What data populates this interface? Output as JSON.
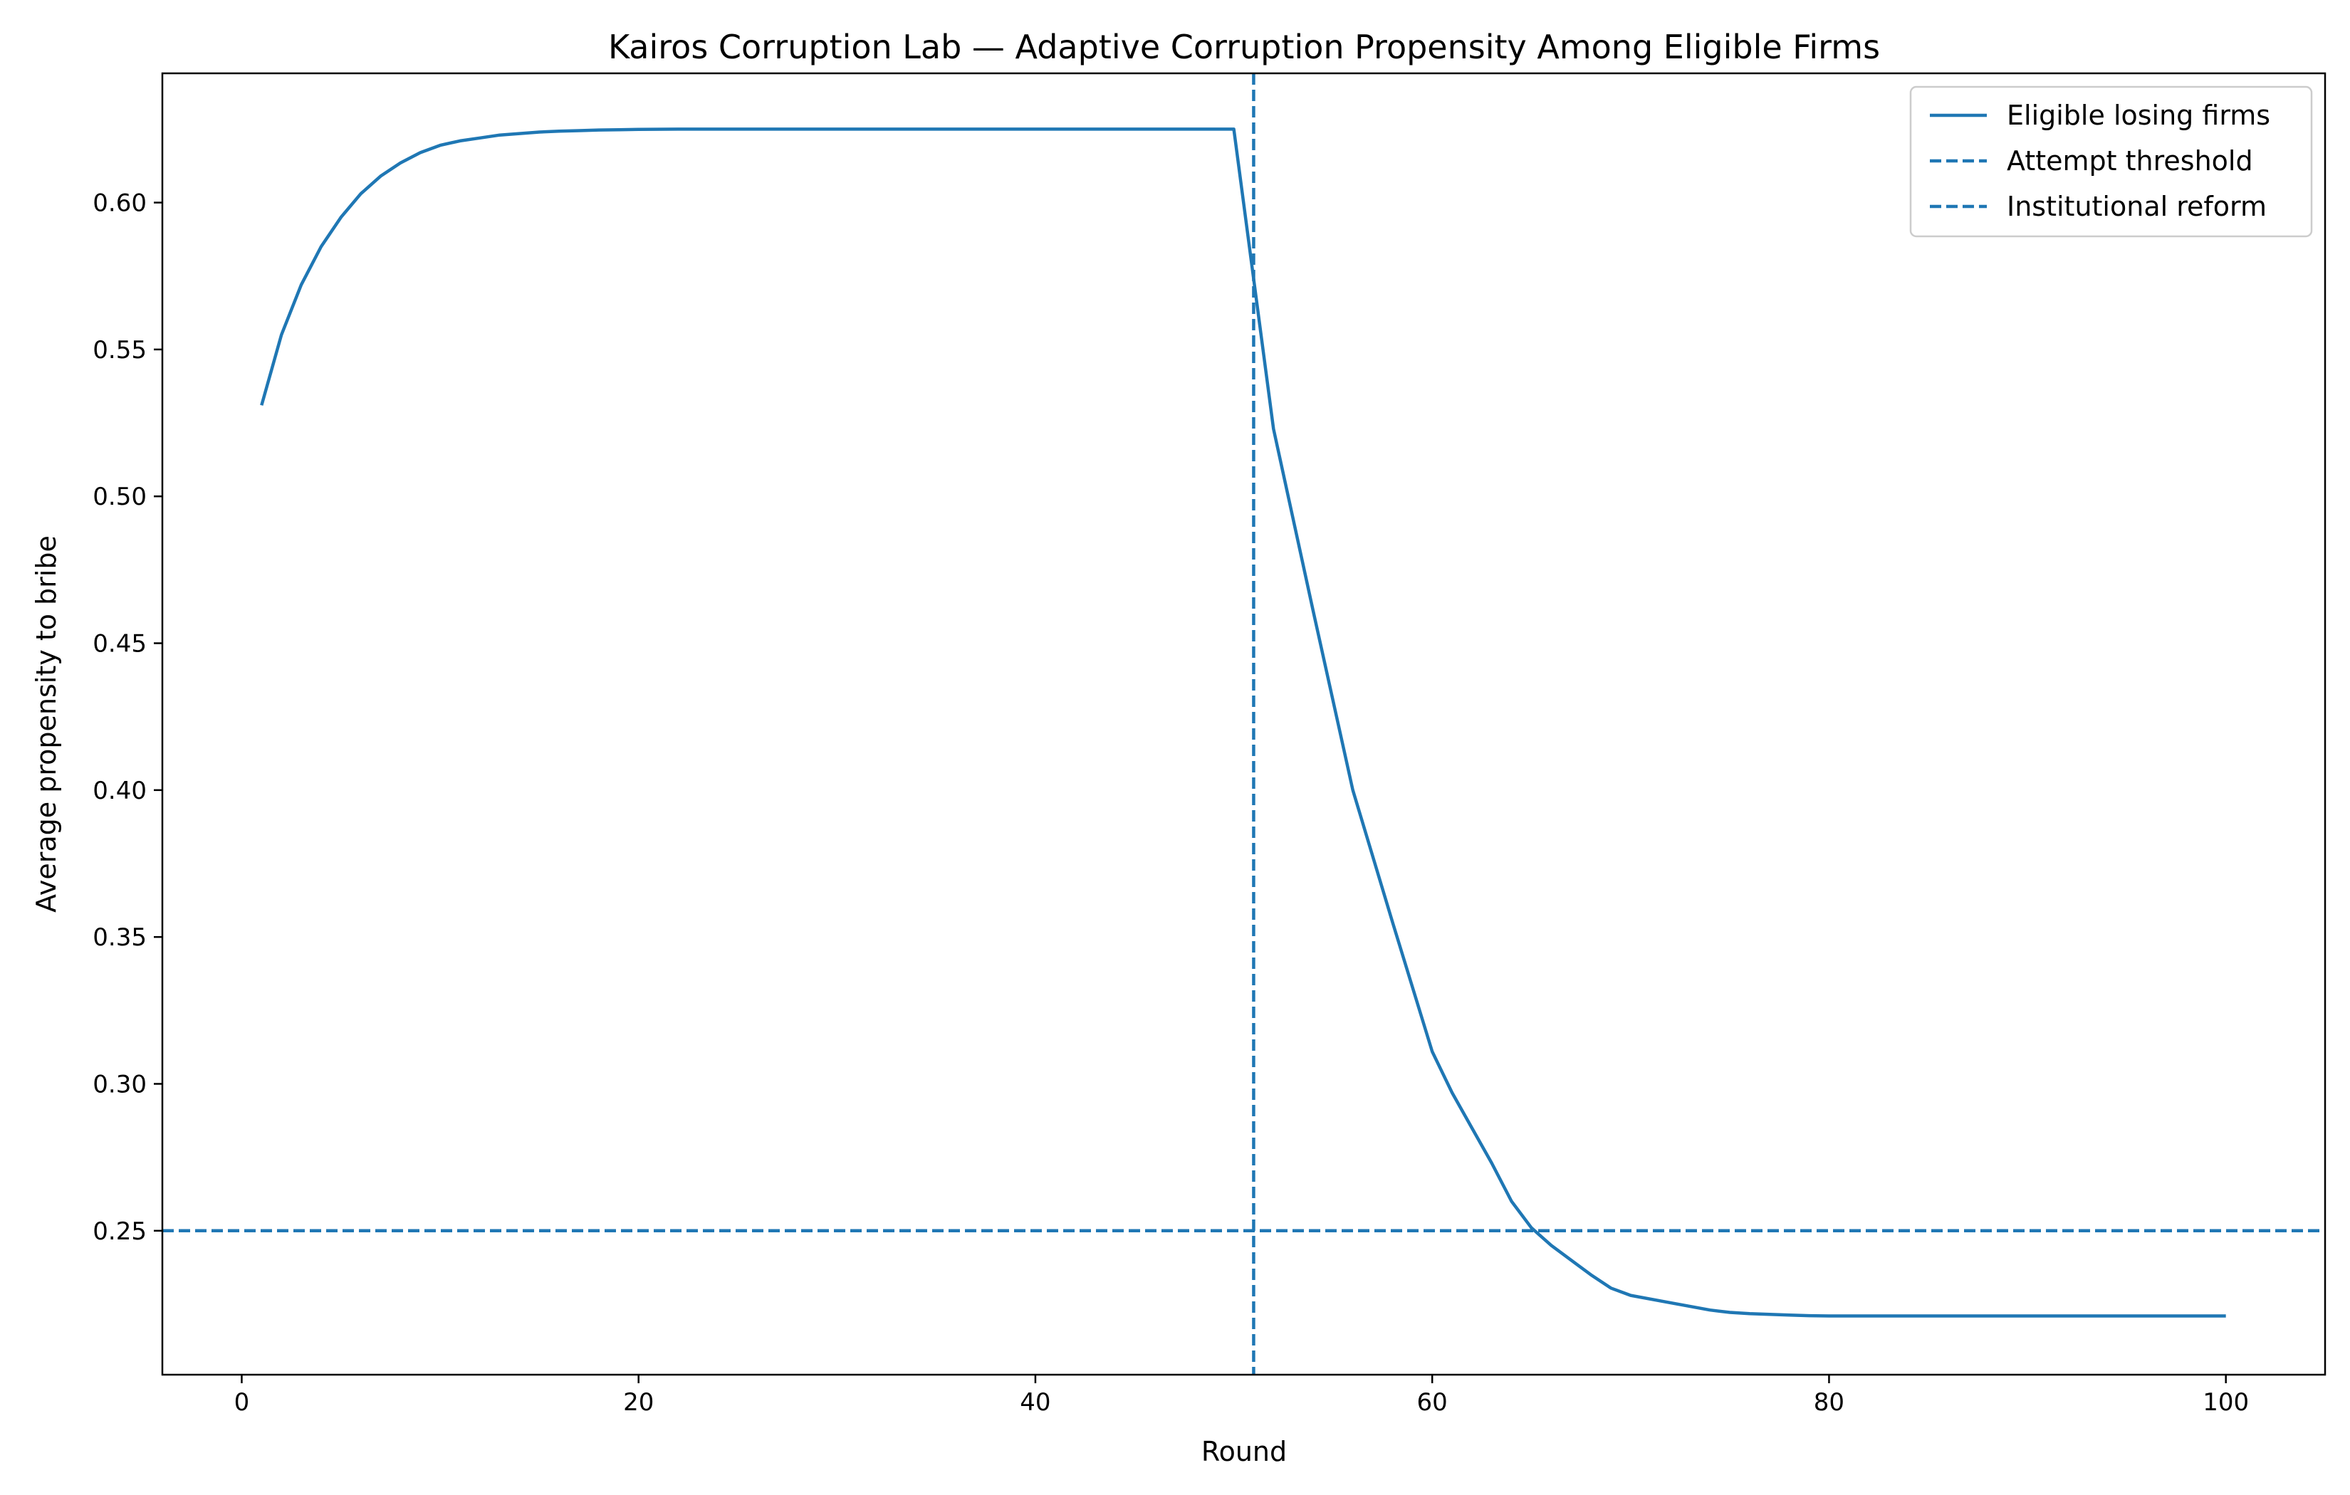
{
  "chart_data": {
    "type": "line",
    "title": "Kairos Corruption Lab — Adaptive Corruption Propensity Among Eligible Firms",
    "xlabel": "Round",
    "ylabel": "Average propensity to bribe",
    "xlim": [
      -4,
      105
    ],
    "ylim": [
      0.201,
      0.644
    ],
    "xticks": [
      0,
      20,
      40,
      60,
      80,
      100
    ],
    "yticks": [
      0.25,
      0.3,
      0.35,
      0.4,
      0.45,
      0.5,
      0.55,
      0.6
    ],
    "grid": false,
    "legend_position": "top-right",
    "color": "#1f77b4",
    "series": [
      {
        "name": "Eligible losing firms",
        "style": "solid",
        "x": [
          1,
          2,
          3,
          4,
          5,
          6,
          7,
          8,
          9,
          10,
          11,
          12,
          13,
          14,
          15,
          16,
          17,
          18,
          19,
          20,
          22,
          25,
          30,
          35,
          40,
          45,
          50,
          52,
          54,
          56,
          58,
          60,
          61,
          62,
          63,
          64,
          65,
          66,
          67,
          68,
          69,
          70,
          72,
          74,
          75,
          76,
          78,
          79,
          80,
          85,
          90,
          95,
          100
        ],
        "y": [
          0.531,
          0.555,
          0.572,
          0.585,
          0.595,
          0.603,
          0.609,
          0.6135,
          0.617,
          0.6195,
          0.621,
          0.622,
          0.623,
          0.6235,
          0.624,
          0.6243,
          0.6245,
          0.6247,
          0.6248,
          0.6249,
          0.625,
          0.625,
          0.625,
          0.625,
          0.625,
          0.625,
          0.625,
          0.523,
          0.461,
          0.4,
          0.355,
          0.311,
          0.297,
          0.285,
          0.273,
          0.26,
          0.251,
          0.245,
          0.24,
          0.235,
          0.2305,
          0.228,
          0.2255,
          0.223,
          0.2222,
          0.2218,
          0.2213,
          0.2211,
          0.221,
          0.221,
          0.221,
          0.221,
          0.221
        ]
      }
    ],
    "reference_lines": [
      {
        "name": "Attempt threshold",
        "orientation": "horizontal",
        "value": 0.25,
        "style": "dashed"
      },
      {
        "name": "Institutional reform",
        "orientation": "vertical",
        "value": 51,
        "style": "dashed"
      }
    ]
  }
}
